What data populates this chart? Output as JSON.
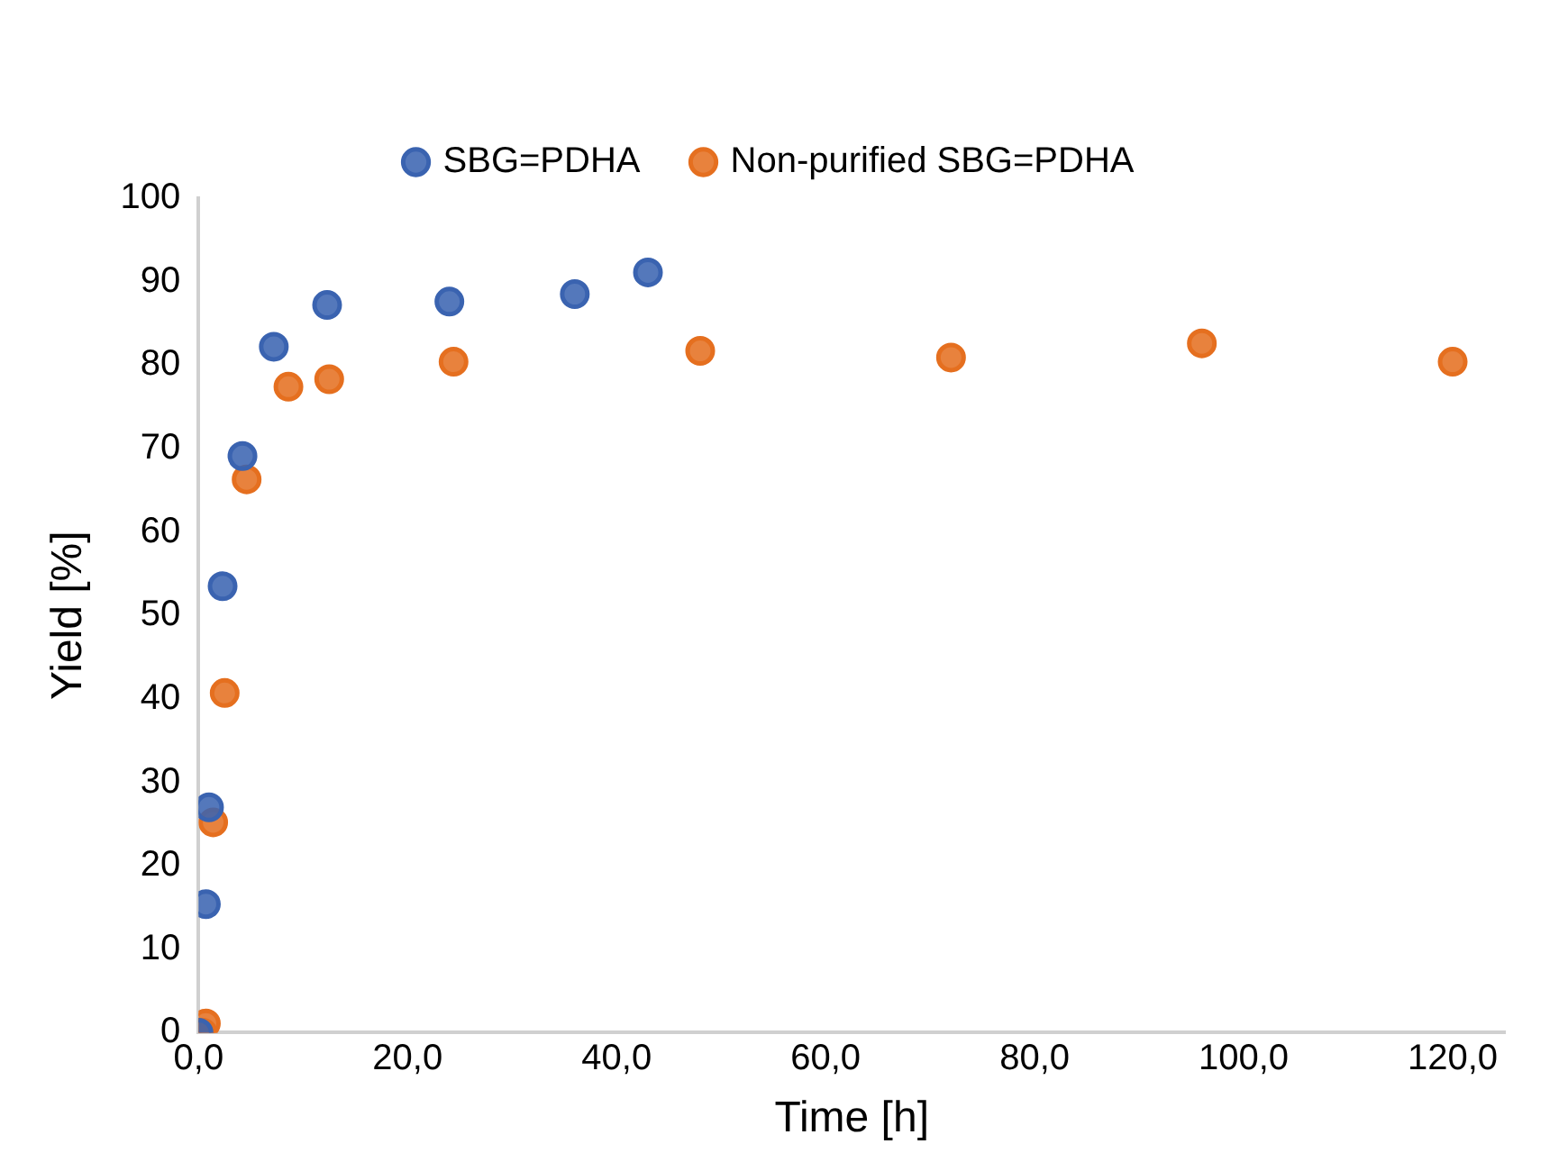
{
  "chart_data": {
    "type": "scatter",
    "xlabel": "Time [h]",
    "ylabel": "Yield [%]",
    "xlim": [
      0,
      125
    ],
    "ylim": [
      0,
      100
    ],
    "xticks": [
      {
        "value": 0,
        "label": "0,0"
      },
      {
        "value": 20,
        "label": "20,0"
      },
      {
        "value": 40,
        "label": "40,0"
      },
      {
        "value": 60,
        "label": "60,0"
      },
      {
        "value": 80,
        "label": "80,0"
      },
      {
        "value": 100,
        "label": "100,0"
      },
      {
        "value": 120,
        "label": "120,0"
      }
    ],
    "yticks": [
      0,
      10,
      20,
      30,
      40,
      50,
      60,
      70,
      80,
      90,
      100
    ],
    "grid": false,
    "legend": "top",
    "marker": "circle",
    "series": [
      {
        "name": "SBG=PDHA",
        "color": "#3a63b0",
        "x": [
          0,
          0.7,
          1,
          2.3,
          4.2,
          7.2,
          12.3,
          24,
          36,
          43
        ],
        "values": [
          0,
          15.4,
          27,
          53.5,
          69.1,
          82.2,
          87.2,
          87.6,
          88.5,
          91.1
        ]
      },
      {
        "name": "Non-purified SBG=PDHA",
        "color": "#e56f1f",
        "x": [
          0.4,
          0.7,
          1.4,
          2.5,
          4.6,
          8.6,
          12.5,
          24.4,
          48,
          72,
          96,
          120
        ],
        "values": [
          0,
          1.1,
          25.2,
          40.7,
          66.3,
          77.4,
          78.3,
          80.4,
          81.7,
          80.9,
          82.6,
          80.4
        ]
      }
    ]
  }
}
